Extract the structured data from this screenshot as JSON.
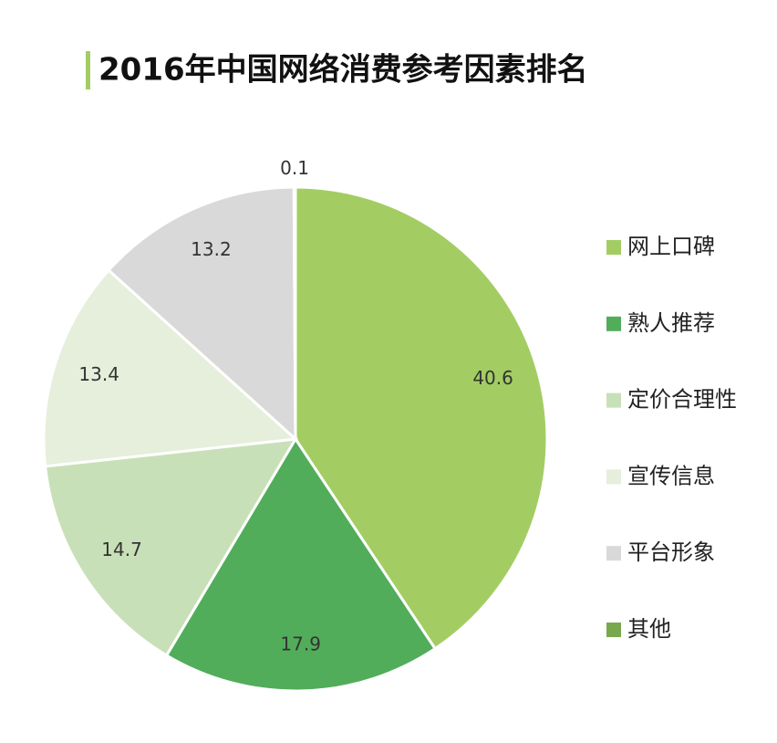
{
  "chart_data": {
    "type": "pie",
    "title": "2016年中国网络消费参考因素排名",
    "categories": [
      "网上口碑",
      "熟人推荐",
      "定价合理性",
      "宣传信息",
      "平台形象",
      "其他"
    ],
    "values": [
      40.6,
      17.9,
      14.7,
      13.4,
      13.2,
      0.1
    ],
    "colors": [
      "#a3cd63",
      "#52ad5b",
      "#c8e0b8",
      "#e5efdb",
      "#d9d9d9",
      "#78a84c"
    ],
    "legend": "right"
  }
}
